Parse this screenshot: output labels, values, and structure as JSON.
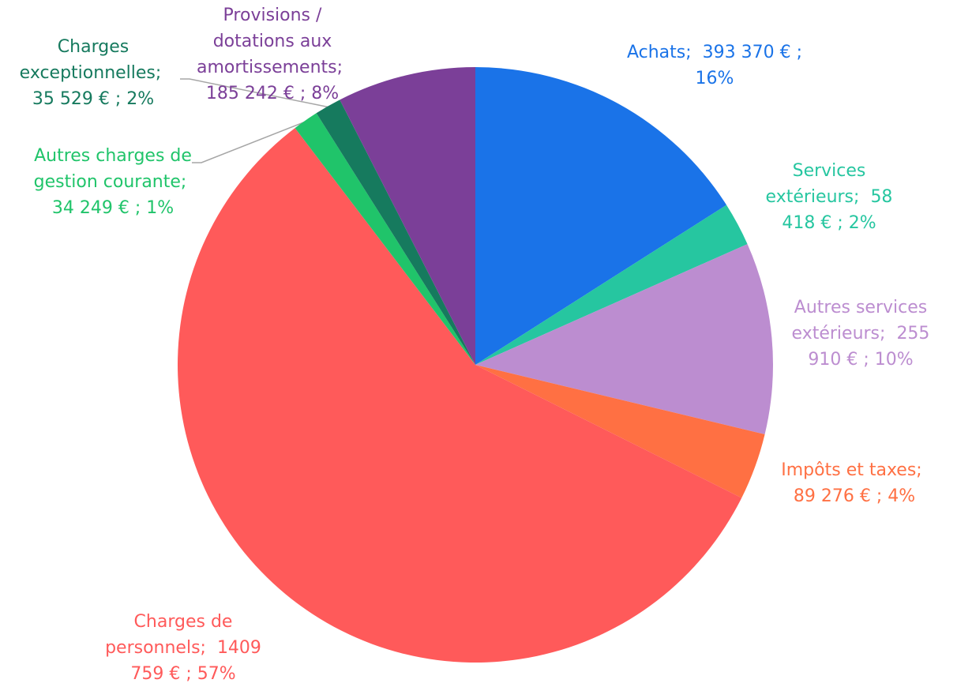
{
  "chart_data": {
    "type": "pie",
    "categories": [
      "Achats;",
      "Services extérieurs;",
      "Autres services extérieurs;",
      "Impôts et taxes;",
      "Charges de personnels;",
      "Autres charges de gestion courante;",
      "Charges exceptionnelles;",
      "Provisions / dotations aux amortissements;"
    ],
    "values": [
      393370,
      58418,
      255910,
      89276,
      1409759,
      34249,
      35529,
      185242
    ],
    "value_labels": [
      "393 370 € ; 16%",
      "58 418 € ; 2%",
      "255 910 € ; 10%",
      "89 276 € ; 4%",
      "1409 759 € ; 57%",
      "34 249 € ; 1%",
      "35 529 € ; 2%",
      "185 242 € ; 8%"
    ],
    "colors": [
      "#1a73e8",
      "#26c6a0",
      "#bc8dd0",
      "#ff7043",
      "#ff5a5a",
      "#20c46a",
      "#167a5e",
      "#7b3f98"
    ]
  }
}
